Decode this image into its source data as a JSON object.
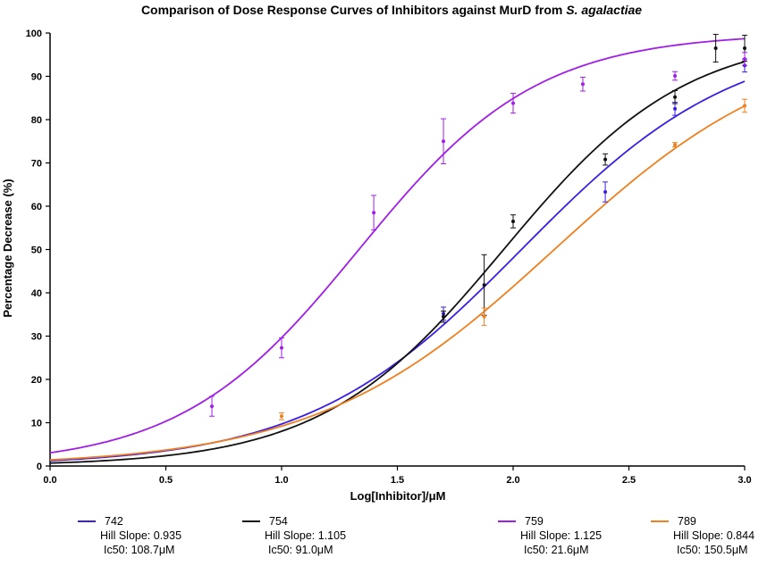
{
  "chart_data": {
    "type": "scatter",
    "title_text": "Comparison of Dose Response Curves of Inhibitors against MurD from ",
    "title_italic": "S. agalactiae",
    "xlabel": "Log[Inhibitor]/μM",
    "ylabel": "Percentage Decrease (%)",
    "xlim": [
      0.0,
      3.0
    ],
    "ylim": [
      0,
      100
    ],
    "xticks": [
      0.0,
      0.5,
      1.0,
      1.5,
      2.0,
      2.5,
      3.0
    ],
    "xtick_labels": [
      "0.0",
      "0.5",
      "1.0",
      "1.5",
      "2.0",
      "2.5",
      "3.0"
    ],
    "yticks": [
      0,
      10,
      20,
      30,
      40,
      50,
      60,
      70,
      80,
      90,
      100
    ],
    "ytick_labels": [
      "0",
      "10",
      "20",
      "30",
      "40",
      "50",
      "60",
      "70",
      "80",
      "90",
      "100"
    ],
    "grid": false,
    "legend_position": "bottom",
    "series": [
      {
        "name": "742",
        "color": "#3b1ee6",
        "hill_slope_text": "Hill Slope: 0.935",
        "ic50_text": "Ic50: 108.7μM",
        "logIC50": 2.036,
        "hill_slope": 0.935,
        "points": [
          {
            "x": 1.699,
            "y": 35.2,
            "err": 1.5
          },
          {
            "x": 2.398,
            "y": 63.3,
            "err": 2.3
          },
          {
            "x": 2.699,
            "y": 82.5,
            "err": 1.5
          },
          {
            "x": 3.0,
            "y": 92.5,
            "err": 1.5
          }
        ]
      },
      {
        "name": "754",
        "color": "#111111",
        "hill_slope_text": "Hill Slope: 1.105",
        "ic50_text": "Ic50: 91.0μM",
        "logIC50": 1.959,
        "hill_slope": 1.105,
        "points": [
          {
            "x": 1.699,
            "y": 34.5,
            "err": 1.3
          },
          {
            "x": 1.875,
            "y": 41.8,
            "err": 7.0
          },
          {
            "x": 2.0,
            "y": 56.5,
            "err": 1.5
          },
          {
            "x": 2.398,
            "y": 70.8,
            "err": 1.3
          },
          {
            "x": 2.699,
            "y": 85.2,
            "err": 1.5
          },
          {
            "x": 2.875,
            "y": 96.5,
            "err": 3.2
          },
          {
            "x": 3.0,
            "y": 96.5,
            "err": 3.0
          }
        ]
      },
      {
        "name": "759",
        "color": "#a01ee6",
        "hill_slope_text": "Hill Slope: 1.125",
        "ic50_text": "Ic50: 21.6μM",
        "logIC50": 1.334,
        "hill_slope": 1.125,
        "points": [
          {
            "x": 0.699,
            "y": 13.8,
            "err": 2.3
          },
          {
            "x": 1.0,
            "y": 27.3,
            "err": 2.3
          },
          {
            "x": 1.398,
            "y": 58.5,
            "err": 4.0
          },
          {
            "x": 1.699,
            "y": 75.0,
            "err": 5.2
          },
          {
            "x": 2.0,
            "y": 83.8,
            "err": 2.3
          },
          {
            "x": 2.301,
            "y": 88.2,
            "err": 1.6
          },
          {
            "x": 2.699,
            "y": 90.1,
            "err": 1.0
          },
          {
            "x": 3.0,
            "y": 94.0,
            "err": 1.5
          }
        ]
      },
      {
        "name": "789",
        "color": "#f07f1e",
        "hill_slope_text": "Hill Slope: 0.844",
        "ic50_text": "Ic50: 150.5μM",
        "logIC50": 2.178,
        "hill_slope": 0.844,
        "points": [
          {
            "x": 1.0,
            "y": 11.5,
            "err": 0.8
          },
          {
            "x": 1.875,
            "y": 34.5,
            "err": 2.0
          },
          {
            "x": 2.699,
            "y": 74.2,
            "err": 0.5
          },
          {
            "x": 3.0,
            "y": 83.2,
            "err": 1.5
          }
        ]
      }
    ]
  }
}
